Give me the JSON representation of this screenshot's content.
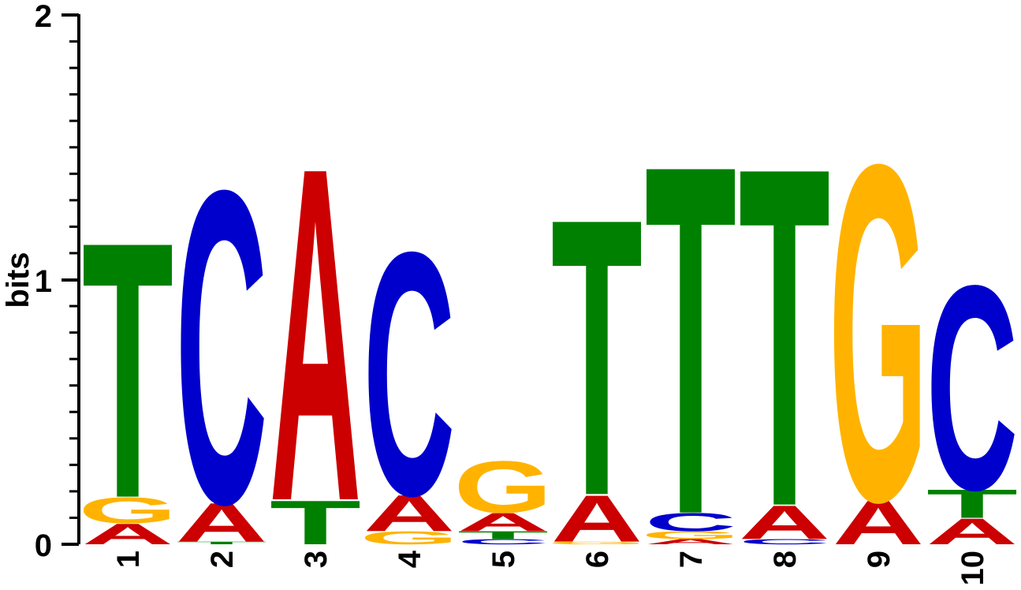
{
  "chart_data": {
    "type": "sequence-logo",
    "ylabel": "bits",
    "ylim": [
      0,
      2
    ],
    "yticks": [
      "0",
      "1",
      "2"
    ],
    "colors": {
      "A": "#cc0000",
      "C": "#0000cc",
      "G": "#ffb300",
      "T": "#008000"
    },
    "positions": [
      {
        "label": "1",
        "stack": [
          {
            "letter": "A",
            "bits": 0.08
          },
          {
            "letter": "G",
            "bits": 0.1
          },
          {
            "letter": "T",
            "bits": 0.99
          }
        ]
      },
      {
        "label": "2",
        "stack": [
          {
            "letter": "T",
            "bits": 0.01
          },
          {
            "letter": "A",
            "bits": 0.15
          },
          {
            "letter": "C",
            "bits": 1.21
          }
        ]
      },
      {
        "label": "3",
        "stack": [
          {
            "letter": "T",
            "bits": 0.17
          },
          {
            "letter": "A",
            "bits": 1.29
          }
        ]
      },
      {
        "label": "4",
        "stack": [
          {
            "letter": "G",
            "bits": 0.05
          },
          {
            "letter": "A",
            "bits": 0.14
          },
          {
            "letter": "C",
            "bits": 0.94
          }
        ]
      },
      {
        "label": "5",
        "stack": [
          {
            "letter": "C",
            "bits": 0.02
          },
          {
            "letter": "T",
            "bits": 0.03
          },
          {
            "letter": "A",
            "bits": 0.07
          },
          {
            "letter": "G",
            "bits": 0.2
          }
        ]
      },
      {
        "label": "6",
        "stack": [
          {
            "letter": "G",
            "bits": 0.01
          },
          {
            "letter": "A",
            "bits": 0.18
          },
          {
            "letter": "T",
            "bits": 1.07
          }
        ]
      },
      {
        "label": "7",
        "stack": [
          {
            "letter": "A",
            "bits": 0.02
          },
          {
            "letter": "G",
            "bits": 0.03
          },
          {
            "letter": "C",
            "bits": 0.07
          },
          {
            "letter": "T",
            "bits": 1.35
          }
        ]
      },
      {
        "label": "8",
        "stack": [
          {
            "letter": "C",
            "bits": 0.02
          },
          {
            "letter": "A",
            "bits": 0.13
          },
          {
            "letter": "T",
            "bits": 1.31
          }
        ]
      },
      {
        "label": "9",
        "stack": [
          {
            "letter": "A",
            "bits": 0.17
          },
          {
            "letter": "G",
            "bits": 1.3
          }
        ]
      },
      {
        "label": "10",
        "stack": [
          {
            "letter": "A",
            "bits": 0.1
          },
          {
            "letter": "T",
            "bits": 0.11
          },
          {
            "letter": "C",
            "bits": 0.79
          }
        ]
      }
    ]
  }
}
